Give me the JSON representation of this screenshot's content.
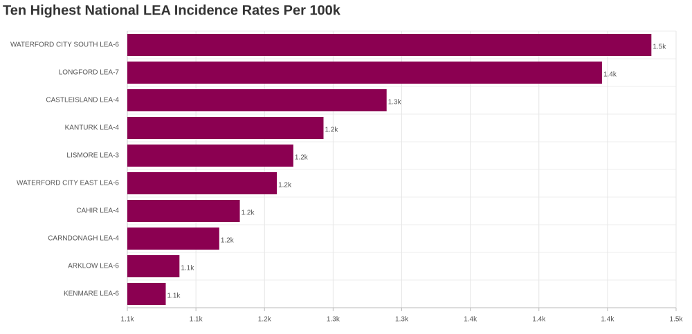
{
  "chart_data": {
    "type": "hbar",
    "title": "Ten Highest National LEA Incidence Rates Per 100k",
    "categories": [
      "WATERFORD CITY SOUTH LEA-6",
      "LONGFORD LEA-7",
      "CASTLEISLAND LEA-4",
      "KANTURK LEA-4",
      "LISMORE LEA-3",
      "WATERFORD CITY EAST LEA-6",
      "CAHIR LEA-4",
      "CARNDONAGH LEA-4",
      "ARKLOW LEA-6",
      "KENMARE LEA-6"
    ],
    "values": [
      1482,
      1446,
      1289,
      1243,
      1221,
      1209,
      1182,
      1167,
      1138,
      1128
    ],
    "value_labels": [
      "1.5k",
      "1.4k",
      "1.3k",
      "1.2k",
      "1.2k",
      "1.2k",
      "1.2k",
      "1.2k",
      "1.1k",
      "1.1k"
    ],
    "color": "#8b0051",
    "xlim": [
      1100,
      1500
    ],
    "xticks": [
      {
        "value": 1100,
        "label": "1.1k"
      },
      {
        "value": 1150,
        "label": "1.1k"
      },
      {
        "value": 1200,
        "label": "1.2k"
      },
      {
        "value": 1250,
        "label": "1.3k"
      },
      {
        "value": 1300,
        "label": "1.3k"
      },
      {
        "value": 1350,
        "label": "1.4k"
      },
      {
        "value": 1400,
        "label": "1.4k"
      },
      {
        "value": 1450,
        "label": "1.4k"
      },
      {
        "value": 1500,
        "label": "1.5k"
      }
    ],
    "grid": true
  }
}
